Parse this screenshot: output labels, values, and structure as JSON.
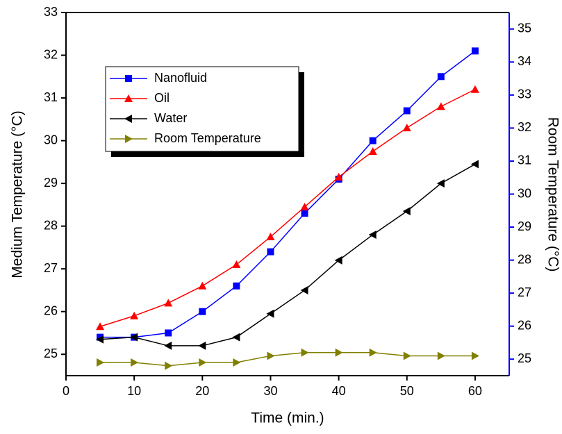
{
  "chart_data": {
    "type": "line",
    "x_label": "Time (min.)",
    "y_label": "Medium Temperature (°C)",
    "y2_label": "Room Temperature (°C)",
    "x": [
      5,
      10,
      15,
      20,
      25,
      30,
      35,
      40,
      45,
      50,
      55,
      60
    ],
    "xlim": [
      0,
      65
    ],
    "xticks": [
      0,
      10,
      20,
      30,
      40,
      50,
      60
    ],
    "ylim": [
      24.5,
      33
    ],
    "yticks": [
      25,
      26,
      27,
      28,
      29,
      30,
      31,
      32,
      33
    ],
    "y2lim": [
      24.5,
      35.5
    ],
    "y2ticks": [
      25,
      26,
      27,
      28,
      29,
      30,
      31,
      32,
      33,
      34,
      35
    ],
    "y2_color": "#0000ff",
    "legend": "upper left",
    "series": [
      {
        "name": "Nanofluid",
        "color": "#0000ff",
        "marker": "square",
        "values": [
          25.4,
          25.4,
          25.5,
          26.0,
          26.6,
          27.4,
          28.3,
          29.1,
          30.0,
          30.7,
          31.5,
          32.1
        ]
      },
      {
        "name": "Oil",
        "color": "#ff0000",
        "marker": "triangle-up",
        "values": [
          25.65,
          25.9,
          26.2,
          26.6,
          27.1,
          27.75,
          28.45,
          29.15,
          29.75,
          30.3,
          30.8,
          31.2
        ]
      },
      {
        "name": "Water",
        "color": "#000000",
        "marker": "triangle-left",
        "values": [
          25.35,
          25.4,
          25.2,
          25.2,
          25.4,
          25.95,
          26.5,
          27.2,
          27.8,
          28.35,
          29.0,
          29.45
        ]
      },
      {
        "name": "Room Temperature",
        "color": "#808000",
        "marker": "triangle-right",
        "axis": "y2",
        "values": [
          24.9,
          24.9,
          24.8,
          24.9,
          24.9,
          25.1,
          25.2,
          25.2,
          25.2,
          25.1,
          25.1,
          25.1
        ]
      }
    ]
  }
}
